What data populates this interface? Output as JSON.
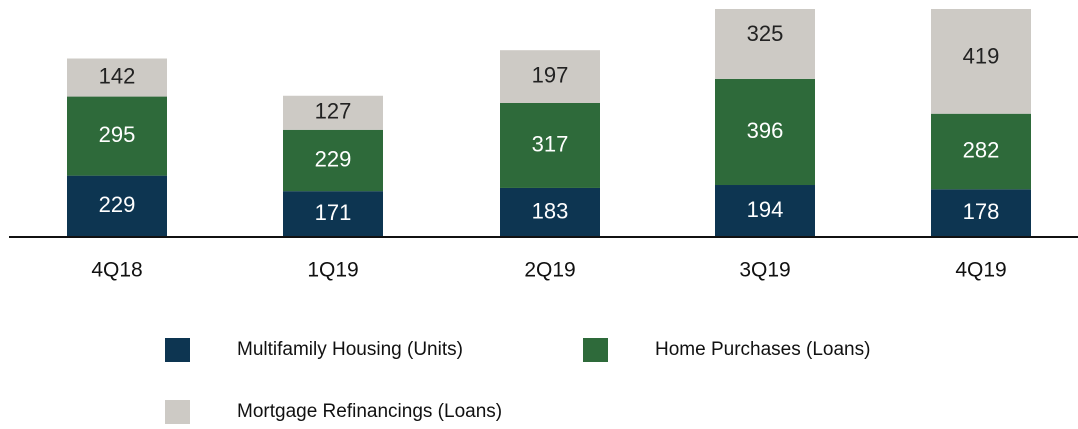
{
  "chart_data": {
    "type": "stacked_bar",
    "categories": [
      "4Q18",
      "1Q19",
      "2Q19",
      "3Q19",
      "4Q19"
    ],
    "series": [
      {
        "name": "Multifamily Housing (Units)",
        "color": "#0d3551",
        "values": [
          229,
          171,
          183,
          194,
          178
        ]
      },
      {
        "name": "Home Purchases (Loans)",
        "color": "#2e6a3a",
        "values": [
          295,
          229,
          317,
          396,
          282
        ]
      },
      {
        "name": "Mortgage Refinancings (Loans)",
        "color": "#cdcac5",
        "values": [
          142,
          127,
          197,
          325,
          419
        ]
      }
    ]
  }
}
